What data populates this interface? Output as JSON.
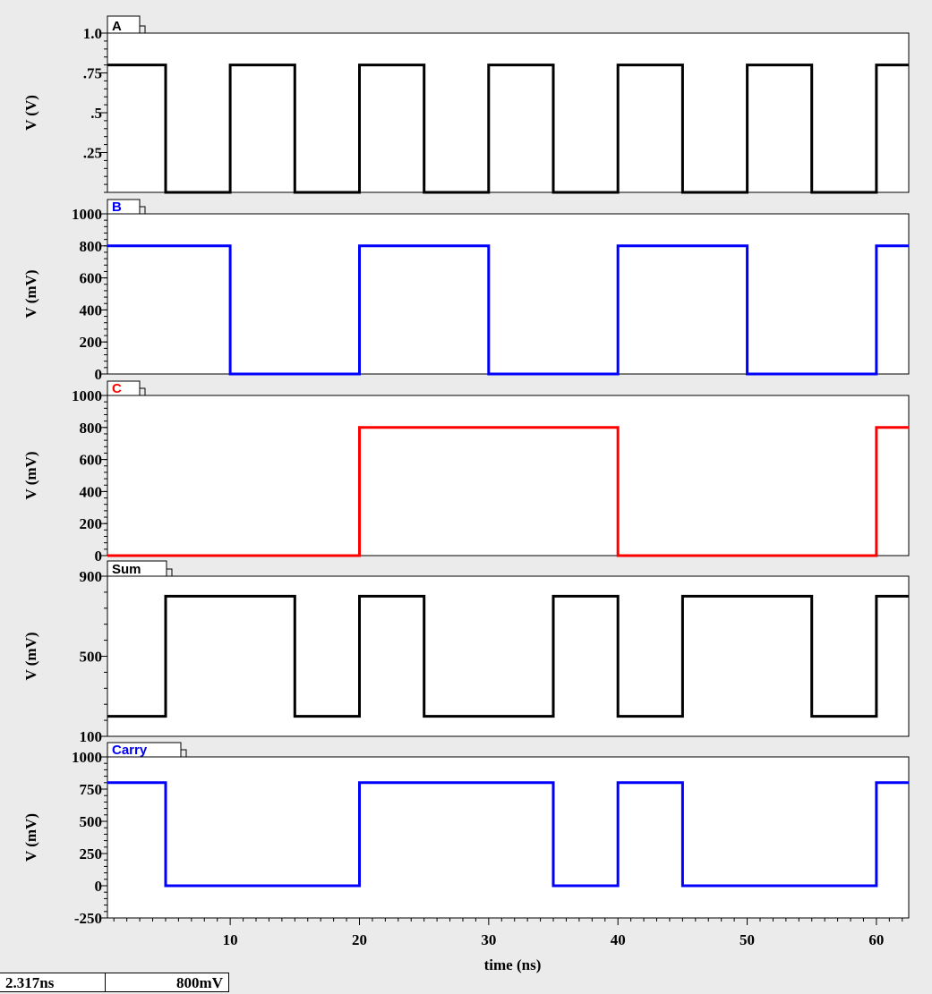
{
  "chart_data": [
    {
      "type": "line",
      "tab": "A",
      "ylabel": "V (V)",
      "xlabel": "",
      "xlim": [
        0.5,
        62.5
      ],
      "ylim": [
        0,
        1.0
      ],
      "yticks": [
        0.25,
        0.5,
        0.75,
        1.0
      ],
      "ytick_labels": [
        ".25",
        ".5",
        ".75",
        "1.0"
      ],
      "color": "#000000",
      "series": [
        {
          "x": [
            0.5,
            5,
            5,
            10,
            10,
            15,
            15,
            20,
            20,
            25,
            25,
            30,
            30,
            35,
            35,
            40,
            40,
            45,
            45,
            50,
            50,
            55,
            55,
            60,
            60,
            62.5
          ],
          "y": [
            0.8,
            0.8,
            0,
            0,
            0.8,
            0.8,
            0,
            0,
            0.8,
            0.8,
            0,
            0,
            0.8,
            0.8,
            0,
            0,
            0.8,
            0.8,
            0,
            0,
            0.8,
            0.8,
            0,
            0,
            0.8,
            0.8
          ]
        }
      ]
    },
    {
      "type": "line",
      "tab": "B",
      "ylabel": "V (mV)",
      "xlabel": "",
      "xlim": [
        0.5,
        62.5
      ],
      "ylim": [
        0,
        1000
      ],
      "yticks": [
        0,
        200,
        400,
        600,
        800,
        1000
      ],
      "ytick_labels": [
        "0",
        "200",
        "400",
        "600",
        "800",
        "1000"
      ],
      "color": "#0000ff",
      "series": [
        {
          "x": [
            0.5,
            10,
            10,
            20,
            20,
            30,
            30,
            40,
            40,
            50,
            50,
            60,
            60,
            62.5
          ],
          "y": [
            800,
            800,
            0,
            0,
            800,
            800,
            0,
            0,
            800,
            800,
            0,
            0,
            800,
            800
          ]
        }
      ]
    },
    {
      "type": "line",
      "tab": "C",
      "ylabel": "V (mV)",
      "xlabel": "",
      "xlim": [
        0.5,
        62.5
      ],
      "ylim": [
        0,
        1000
      ],
      "yticks": [
        0,
        200,
        400,
        600,
        800,
        1000
      ],
      "ytick_labels": [
        "0",
        "200",
        "400",
        "600",
        "800",
        "1000"
      ],
      "color": "#ff0000",
      "series": [
        {
          "x": [
            0.5,
            20,
            20,
            40,
            40,
            60,
            60,
            62.5
          ],
          "y": [
            0,
            0,
            800,
            800,
            0,
            0,
            800,
            800
          ]
        }
      ]
    },
    {
      "type": "line",
      "tab": "Sum",
      "ylabel": "V (mV)",
      "xlabel": "",
      "xlim": [
        0.5,
        62.5
      ],
      "ylim": [
        100,
        900
      ],
      "yticks": [
        100,
        500,
        900
      ],
      "ytick_labels": [
        "100",
        "500",
        "900"
      ],
      "color": "#000000",
      "series": [
        {
          "x": [
            0.5,
            5,
            5,
            15,
            15,
            20,
            20,
            25,
            25,
            35,
            35,
            40,
            40,
            45,
            45,
            55,
            55,
            60,
            60,
            62.5
          ],
          "y": [
            200,
            200,
            800,
            800,
            200,
            200,
            800,
            800,
            200,
            200,
            800,
            800,
            200,
            200,
            800,
            800,
            200,
            200,
            800,
            800
          ]
        }
      ]
    },
    {
      "type": "line",
      "tab": "Carry",
      "ylabel": "V (mV)",
      "xlabel": "time (ns)",
      "xlim": [
        0.5,
        62.5
      ],
      "ylim": [
        -250,
        1000
      ],
      "yticks": [
        -250,
        0,
        250,
        500,
        750,
        1000
      ],
      "ytick_labels": [
        "-250",
        "0",
        "250",
        "500",
        "750",
        "1000"
      ],
      "xticks": [
        10,
        20,
        30,
        40,
        50,
        60
      ],
      "color": "#0000ff",
      "series": [
        {
          "x": [
            0.5,
            5,
            5,
            20,
            20,
            35,
            35,
            40,
            40,
            45,
            45,
            60,
            60,
            62.5
          ],
          "y": [
            800,
            800,
            0,
            0,
            800,
            800,
            0,
            0,
            800,
            800,
            0,
            0,
            800,
            800
          ]
        }
      ]
    }
  ],
  "readout": {
    "time": "2.317ns",
    "voltage": "800mV"
  }
}
